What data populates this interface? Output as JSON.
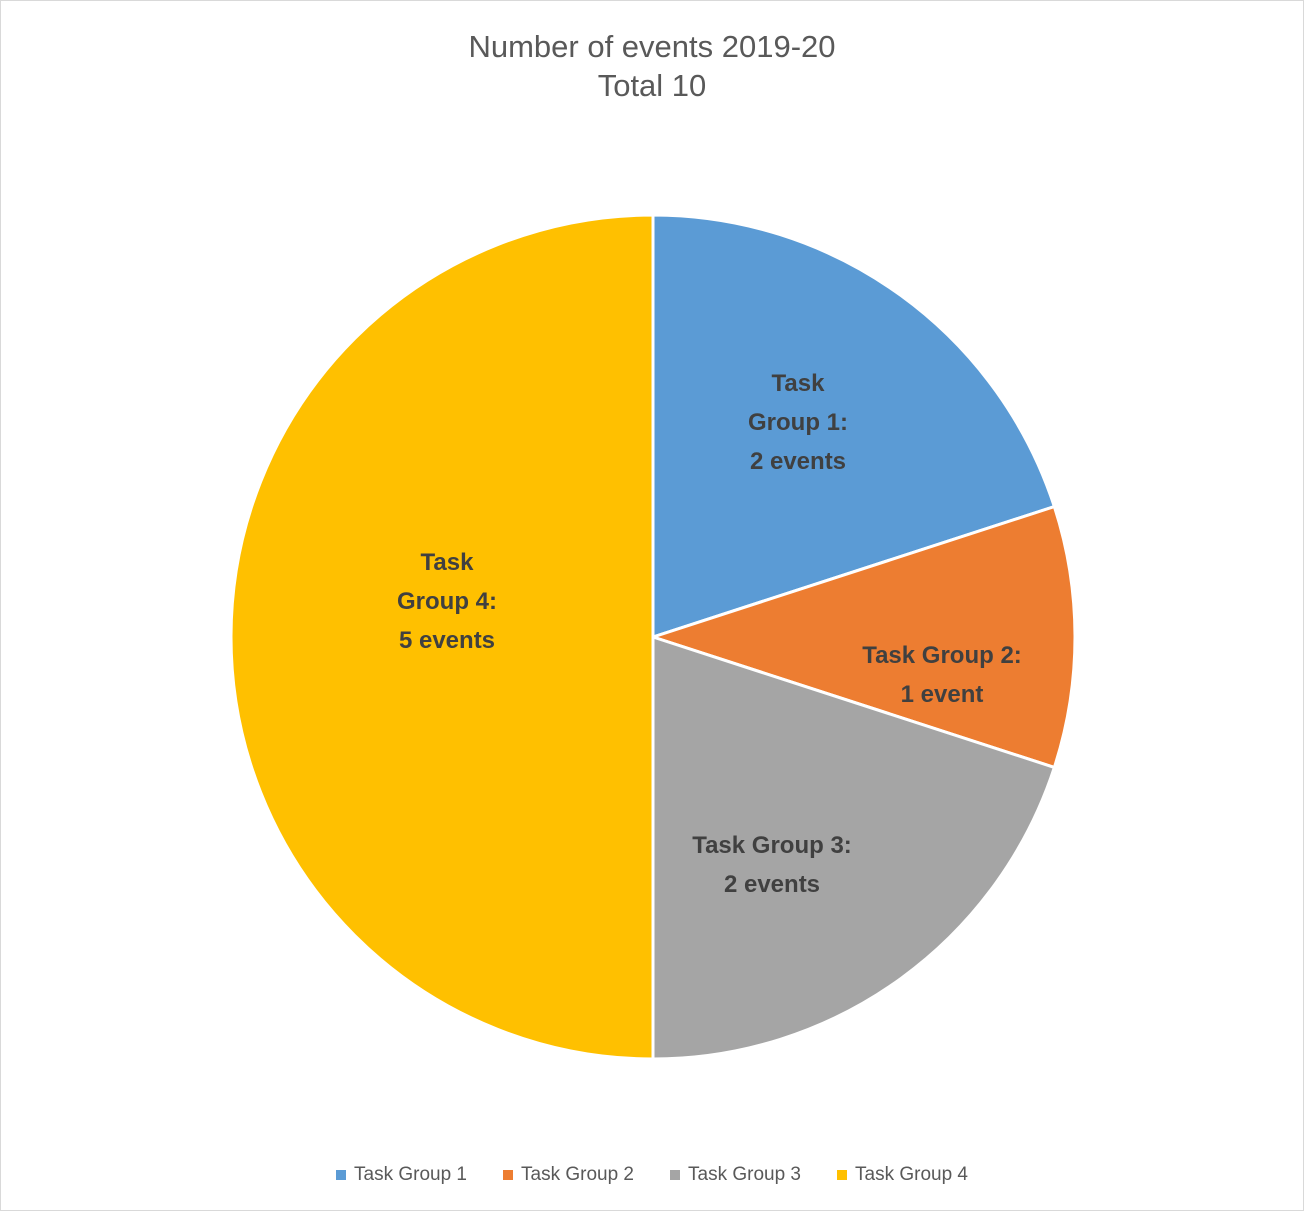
{
  "chart_data": {
    "type": "pie",
    "title": "Number of events 2019-20",
    "subtitle": "Total 10",
    "legend_position": "bottom",
    "series": [
      {
        "name": "Task Group 1",
        "value": 2,
        "color": "#5b9bd5",
        "label_lines": [
          "Task",
          "Group 1:",
          "2 events"
        ]
      },
      {
        "name": "Task Group 2",
        "value": 1,
        "color": "#ed7d31",
        "label_lines": [
          "Task Group 2:",
          "1 event"
        ]
      },
      {
        "name": "Task Group 3",
        "value": 2,
        "color": "#a5a5a5",
        "label_lines": [
          "Task Group 3:",
          "2 events"
        ]
      },
      {
        "name": "Task Group 4",
        "value": 5,
        "color": "#ffc000",
        "label_lines": [
          "Task",
          "Group 4:",
          "5 events"
        ]
      }
    ]
  }
}
